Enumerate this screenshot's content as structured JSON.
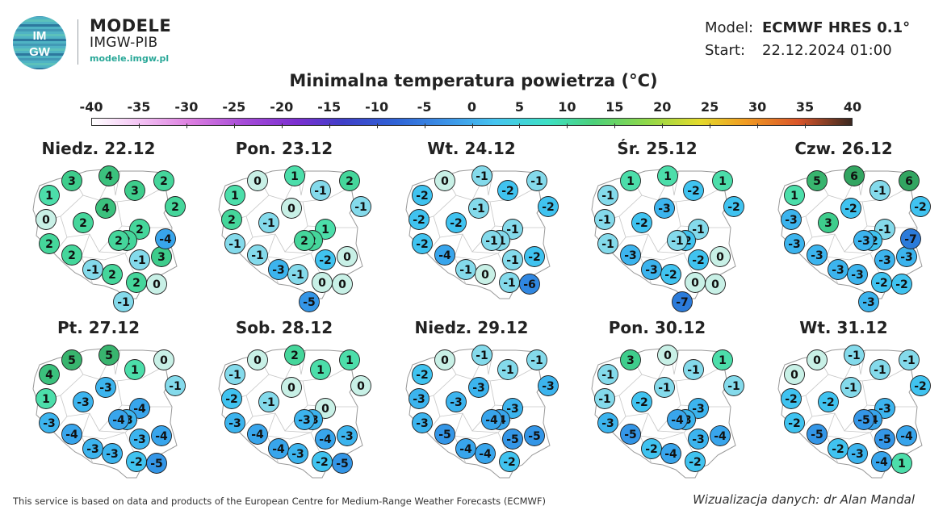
{
  "brand": {
    "logo_text": "IMGW",
    "title": "MODELE",
    "subtitle": "IMGW-PIB",
    "url": "modele.imgw.pl",
    "logo_colors": [
      "#4fb3c4",
      "#3d8fb0",
      "#62c7b8",
      "#1f5f8f"
    ]
  },
  "meta": {
    "model_label": "Model:",
    "model_value": "ECMWF HRES 0.1°",
    "start_label": "Start:",
    "start_value": "22.12.2024 01:00"
  },
  "title": "Minimalna temperatura powietrza (°C)",
  "colorbar": {
    "ticks": [
      "-40",
      "-35",
      "-30",
      "-25",
      "-20",
      "-15",
      "-10",
      "-5",
      "0",
      "5",
      "10",
      "15",
      "20",
      "25",
      "30",
      "35",
      "40"
    ],
    "min": -40,
    "max": 40
  },
  "footer": {
    "left": "This service is based on data and products of the European Centre for Medium-Range Weather Forecasts (ECMWF)",
    "right": "Wizualizacja danych: dr Alan Mandal"
  },
  "map_data": {
    "region": "Poland",
    "units": "°C",
    "panels": [
      {
        "label": "Niedz. 22.12",
        "values": [
          4,
          3,
          2,
          1,
          3,
          2,
          4,
          0,
          2,
          2,
          2,
          2,
          2,
          2,
          3,
          -1,
          -1,
          2,
          2,
          0,
          -1,
          -4
        ]
      },
      {
        "label": "Pon. 23.12",
        "values": [
          1,
          0,
          2,
          1,
          -1,
          -1,
          0,
          2,
          -1,
          1,
          2,
          -1,
          2,
          -1,
          0,
          -2,
          -3,
          -1,
          0,
          0,
          -5
        ]
      },
      {
        "label": "Wt. 24.12",
        "values": [
          -1,
          0,
          -1,
          -2,
          -2,
          -2,
          -1,
          -2,
          -2,
          -1,
          -1,
          -2,
          -1,
          -4,
          -2,
          -1,
          -1,
          0,
          -1,
          -6
        ]
      },
      {
        "label": "Śr. 25.12",
        "values": [
          1,
          1,
          1,
          -1,
          -2,
          -2,
          -3,
          -1,
          -2,
          -1,
          -2,
          -1,
          -1,
          -3,
          0,
          -2,
          -3,
          -2,
          0,
          0,
          -7
        ]
      },
      {
        "label": "Czw. 26.12",
        "values": [
          6,
          5,
          6,
          1,
          -1,
          -2,
          -2,
          -3,
          3,
          -1,
          -2,
          -3,
          -3,
          -3,
          -3,
          -3,
          -3,
          -3,
          -2,
          -2,
          -3,
          -7
        ]
      },
      {
        "label": "Pt. 27.12",
        "values": [
          5,
          5,
          0,
          4,
          1,
          -1,
          -3,
          1,
          -3,
          -4,
          -3,
          -3,
          -4,
          -4,
          -4,
          -3,
          -3,
          -3,
          -2,
          -5
        ]
      },
      {
        "label": "Sob. 28.12",
        "values": [
          2,
          0,
          1,
          -1,
          1,
          0,
          0,
          -2,
          -1,
          0,
          -3,
          -3,
          -3,
          -4,
          -3,
          -4,
          -4,
          -3,
          -2,
          -5
        ]
      },
      {
        "label": "Niedz. 29.12",
        "values": [
          -1,
          0,
          -1,
          -2,
          -1,
          -3,
          -3,
          -3,
          -3,
          -3,
          -4,
          -3,
          -4,
          -5,
          -5,
          -5,
          -4,
          -4,
          -2
        ]
      },
      {
        "label": "Pon. 30.12",
        "values": [
          0,
          3,
          1,
          -1,
          -1,
          -1,
          -1,
          -1,
          -2,
          -3,
          -3,
          -3,
          -4,
          -5,
          -4,
          -3,
          -2,
          -4,
          -2
        ]
      },
      {
        "label": "Wt. 31.12",
        "values": [
          -1,
          0,
          -1,
          0,
          -1,
          -2,
          -1,
          -2,
          -2,
          -3,
          -4,
          -2,
          -5,
          -5,
          -4,
          -5,
          -2,
          -3,
          -4,
          1
        ]
      }
    ]
  }
}
